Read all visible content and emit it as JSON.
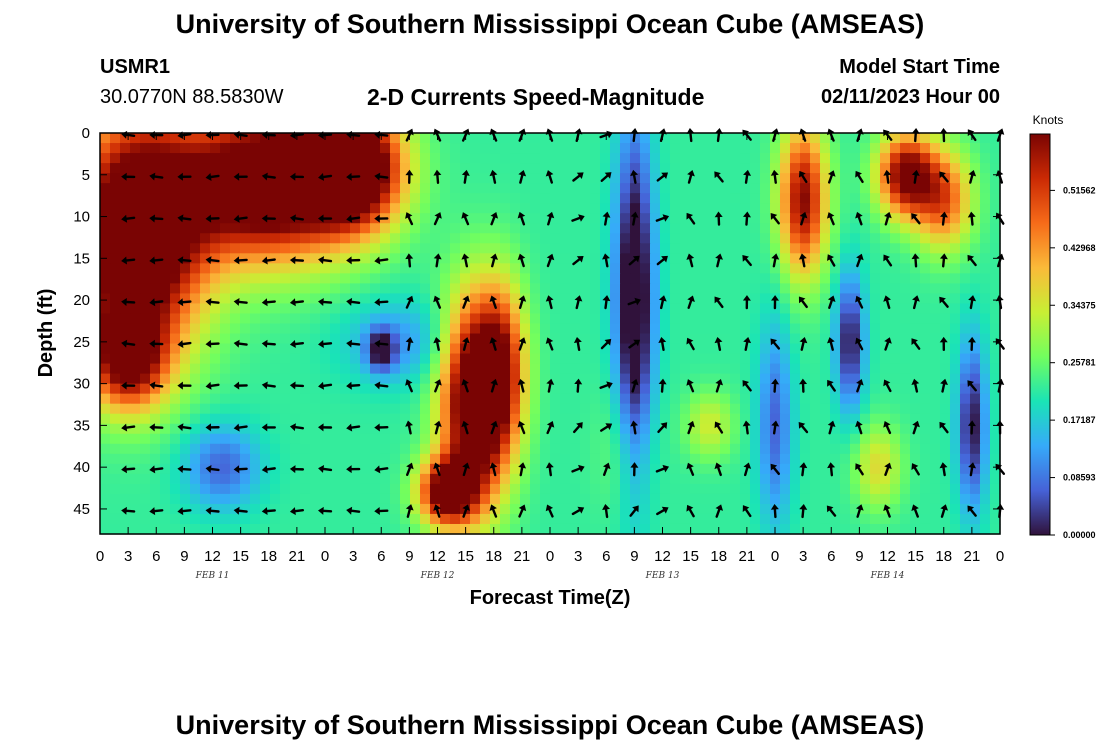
{
  "header": {
    "title": "University of Southern Mississippi Ocean Cube (AMSEAS)",
    "station": "USMR1",
    "coords": "30.0770N  88.5830W",
    "plot_name": "2-D Currents Speed-Magnitude",
    "model_start_label": "Model Start Time",
    "model_start_value": "02/11/2023 Hour 00"
  },
  "footer": {
    "title": "University of Southern Mississippi Ocean Cube (AMSEAS)"
  },
  "chart_data": {
    "type": "heatmap",
    "title": "2-D Currents Speed-Magnitude",
    "xlabel": "Forecast Time(Z)",
    "ylabel": "Depth (ft)",
    "xlim": [
      0,
      96
    ],
    "ylim": [
      0,
      48
    ],
    "x_tick_labels": [
      "0",
      "3",
      "6",
      "9",
      "12",
      "15",
      "18",
      "21",
      "0",
      "3",
      "6",
      "9",
      "12",
      "15",
      "18",
      "21",
      "0",
      "3",
      "6",
      "9",
      "12",
      "15",
      "18",
      "21",
      "0",
      "3",
      "6",
      "9",
      "12",
      "15",
      "18",
      "21",
      "0"
    ],
    "day_labels": [
      {
        "text": "FEB 11",
        "hour": 12
      },
      {
        "text": "FEB 12",
        "hour": 36
      },
      {
        "text": "FEB 13",
        "hour": 60
      },
      {
        "text": "FEB 14",
        "hour": 84
      }
    ],
    "y_ticks": [
      0,
      5,
      10,
      15,
      20,
      25,
      30,
      35,
      40,
      45
    ],
    "colorbar": {
      "unit": "Knots",
      "range": [
        0,
        0.6
      ],
      "ticks": [
        "0.00000",
        "0.08593",
        "0.17187",
        "0.25781",
        "0.34375",
        "0.42968",
        "0.51562"
      ],
      "tick_values": [
        0,
        0.08593,
        0.17187,
        0.25781,
        0.34375,
        0.42968,
        0.51562
      ],
      "colormap": [
        "#30123b",
        "#4662d7",
        "#36aaf9",
        "#1ae4b6",
        "#72fe5e",
        "#c8ef34",
        "#faba39",
        "#f66b19",
        "#cb2a04",
        "#7a0403"
      ]
    },
    "arrow_hours": [
      3,
      6,
      9,
      12,
      15,
      18,
      21,
      24,
      27,
      30,
      33,
      36,
      39,
      42,
      45,
      48,
      51,
      54,
      57,
      60,
      63,
      66,
      69,
      72,
      75,
      78,
      81,
      84,
      87,
      90,
      93,
      96
    ],
    "arrow_depths": [
      0,
      5,
      10,
      15,
      20,
      25,
      30,
      35,
      40,
      45
    ],
    "speed_features": [
      {
        "hour": 4,
        "depth": 12,
        "hour_spread": 7,
        "depth_spread": 14,
        "speed": 0.55
      },
      {
        "hour": 18,
        "depth": 6,
        "hour_spread": 9,
        "depth_spread": 9,
        "speed": 0.52
      },
      {
        "hour": 27,
        "depth": 4,
        "hour_spread": 5,
        "depth_spread": 7,
        "speed": 0.5
      },
      {
        "hour": 3,
        "depth": 27,
        "hour_spread": 4,
        "depth_spread": 6,
        "speed": 0.35
      },
      {
        "hour": 13,
        "depth": 40,
        "hour_spread": 4,
        "depth_spread": 5,
        "speed": -0.15
      },
      {
        "hour": 32,
        "depth": 25,
        "hour_spread": 6,
        "depth_spread": 5,
        "speed": -0.1
      },
      {
        "hour": 30,
        "depth": 26,
        "hour_spread": 1.5,
        "depth_spread": 2.5,
        "speed": -0.2
      },
      {
        "hour": 40,
        "depth": 32,
        "hour_spread": 3.5,
        "depth_spread": 12,
        "speed": 0.52
      },
      {
        "hour": 43,
        "depth": 28,
        "hour_spread": 2.5,
        "depth_spread": 10,
        "speed": 0.25
      },
      {
        "hour": 37,
        "depth": 43,
        "hour_spread": 3,
        "depth_spread": 4,
        "speed": 0.42
      },
      {
        "hour": 57,
        "depth": 20,
        "hour_spread": 2,
        "depth_spread": 20,
        "speed": -0.3
      },
      {
        "hour": 56,
        "depth": 38,
        "hour_spread": 3,
        "depth_spread": 8,
        "speed": 0.05
      },
      {
        "hour": 65,
        "depth": 35,
        "hour_spread": 2.5,
        "depth_spread": 4,
        "speed": 0.12
      },
      {
        "hour": 72,
        "depth": 35,
        "hour_spread": 1.8,
        "depth_spread": 12,
        "speed": -0.15
      },
      {
        "hour": 75,
        "depth": 8,
        "hour_spread": 2.5,
        "depth_spread": 9,
        "speed": 0.37
      },
      {
        "hour": 80,
        "depth": 25,
        "hour_spread": 1.5,
        "depth_spread": 8,
        "speed": -0.22
      },
      {
        "hour": 86,
        "depth": 5,
        "hour_spread": 3,
        "depth_spread": 5,
        "speed": 0.4
      },
      {
        "hour": 90,
        "depth": 8,
        "hour_spread": 3,
        "depth_spread": 6,
        "speed": 0.26
      },
      {
        "hour": 83,
        "depth": 40,
        "hour_spread": 2.5,
        "depth_spread": 5,
        "speed": 0.14
      },
      {
        "hour": 93,
        "depth": 35,
        "hour_spread": 1.5,
        "depth_spread": 10,
        "speed": -0.22
      }
    ]
  }
}
